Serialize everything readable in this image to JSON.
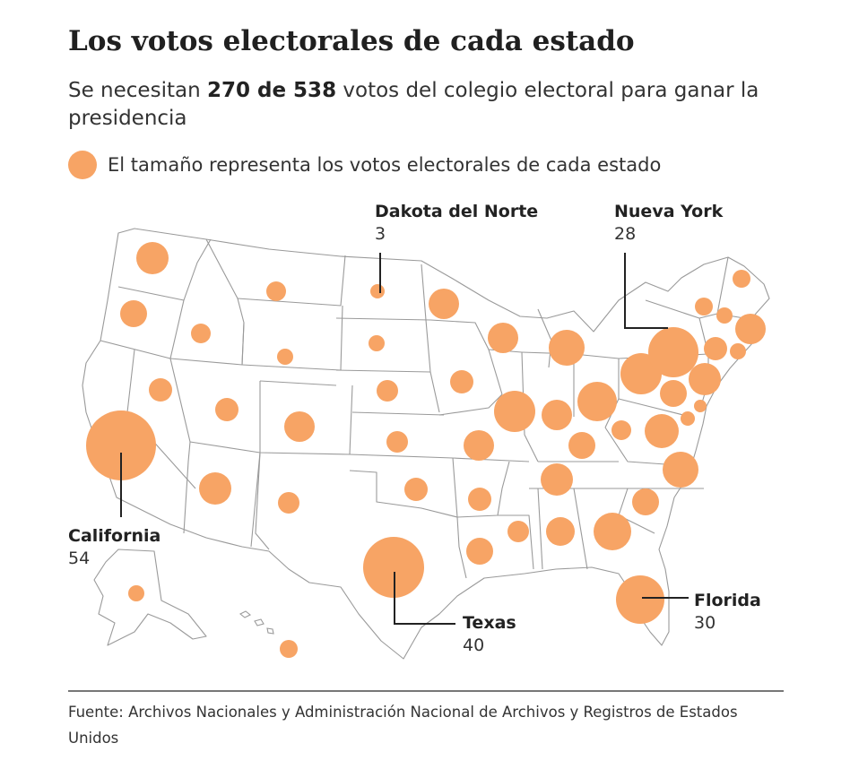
{
  "header": {
    "title": "Los votos electorales de cada estado",
    "subtitle_before": "Se necesitan ",
    "subtitle_bold": "270 de 538",
    "subtitle_after": " votos del colegio electoral para ganar la presidencia"
  },
  "legend": {
    "label": "El tamaño representa los votos electorales de cada estado",
    "color": "#f7a465"
  },
  "map": {
    "bubble_color": "#f7a465",
    "border_color": "#9a9a9a",
    "callouts": [
      {
        "id": "dakota-del-norte",
        "name": "Dakota del Norte",
        "votes": "3"
      },
      {
        "id": "nueva-york",
        "name": "Nueva York",
        "votes": "28"
      },
      {
        "id": "california",
        "name": "California",
        "votes": "54"
      },
      {
        "id": "texas",
        "name": "Texas",
        "votes": "40"
      },
      {
        "id": "florida",
        "name": "Florida",
        "votes": "30"
      }
    ]
  },
  "footer": {
    "source": "Fuente: Archivos Nacionales y Administración Nacional de Archivos y Registros de Estados Unidos"
  }
}
